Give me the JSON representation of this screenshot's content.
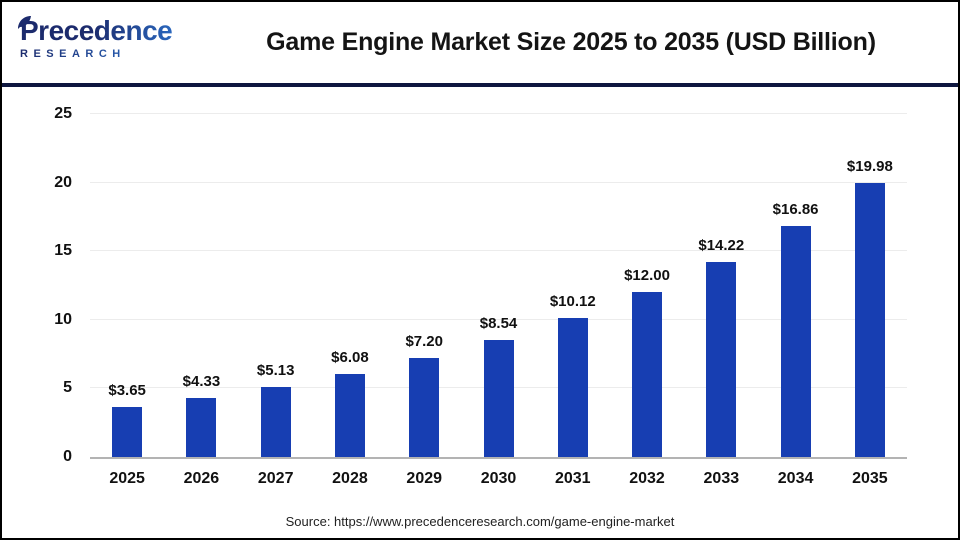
{
  "logo": {
    "word": "Precedence",
    "sub": "RESEARCH",
    "colors": {
      "dark": "#1c2b6d",
      "light": "#2f7bd8"
    }
  },
  "header": {
    "title": "Game Engine Market Size 2025 to 2035 (USD Billion)"
  },
  "chart_data": {
    "type": "bar",
    "title": "Game Engine Market Size 2025 to 2035 (USD Billion)",
    "categories": [
      "2025",
      "2026",
      "2027",
      "2028",
      "2029",
      "2030",
      "2031",
      "2032",
      "2033",
      "2034",
      "2035"
    ],
    "values": [
      3.65,
      4.33,
      5.13,
      6.08,
      7.2,
      8.54,
      10.12,
      12.0,
      14.22,
      16.86,
      19.98
    ],
    "value_labels": [
      "$3.65",
      "$4.33",
      "$5.13",
      "$6.08",
      "$7.20",
      "$8.54",
      "$10.12",
      "$12.00",
      "$14.22",
      "$16.86",
      "$19.98"
    ],
    "xlabel": "",
    "ylabel": "",
    "ylim": [
      0,
      25
    ],
    "yticks": [
      0,
      5,
      10,
      15,
      20,
      25
    ],
    "grid": true,
    "legend": "none",
    "bar_color": "#173EB2",
    "axis_color": "#b3b3b3",
    "grid_color": "#ececec"
  },
  "footer": {
    "source": "Source: https://www.precedenceresearch.com/game-engine-market"
  }
}
